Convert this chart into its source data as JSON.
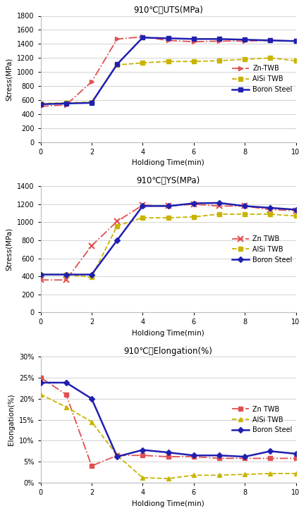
{
  "uts": {
    "title": "910℃，UTS(MPa)",
    "xlabel": "Holdiong Time(min)",
    "ylabel": "Stress(MPa)",
    "ylim": [
      0,
      1800
    ],
    "yticks": [
      0,
      200,
      400,
      600,
      800,
      1000,
      1200,
      1400,
      1600,
      1800
    ],
    "xlim": [
      0,
      10
    ],
    "xticks": [
      0,
      2,
      4,
      6,
      8,
      10
    ],
    "x": [
      0,
      1,
      2,
      3,
      4,
      5,
      6,
      7,
      8,
      9,
      10
    ],
    "zn_twb": [
      510,
      530,
      860,
      1470,
      1500,
      1450,
      1430,
      1440,
      1440,
      1450,
      1440
    ],
    "alsi_twb": [
      550,
      560,
      570,
      1100,
      1130,
      1150,
      1150,
      1160,
      1180,
      1200,
      1160
    ],
    "boron_steel": [
      540,
      550,
      560,
      1110,
      1490,
      1480,
      1470,
      1470,
      1460,
      1450,
      1440
    ],
    "zn_color": "#e05050",
    "alsi_color": "#c8b400",
    "boron_color": "#2020b0",
    "legend_labels": [
      "Zn-TWB",
      "AlSi TWB",
      "Boron Steel"
    ]
  },
  "ys": {
    "title": "910℃，YS(MPa)",
    "xlabel": "Holdiong Time(min)",
    "ylabel": "Stress(MPa)",
    "ylim": [
      0,
      1400
    ],
    "yticks": [
      0,
      200,
      400,
      600,
      800,
      1000,
      1200,
      1400
    ],
    "xlim": [
      0,
      10
    ],
    "xticks": [
      0,
      2,
      4,
      6,
      8,
      10
    ],
    "x": [
      0,
      1,
      2,
      3,
      4,
      5,
      6,
      7,
      8,
      9,
      10
    ],
    "zn_twb": [
      360,
      360,
      740,
      1010,
      1190,
      1180,
      1200,
      1180,
      1180,
      1140,
      1130
    ],
    "alsi_twb": [
      420,
      420,
      390,
      960,
      1050,
      1050,
      1060,
      1090,
      1090,
      1090,
      1070
    ],
    "boron_steel": [
      420,
      420,
      420,
      800,
      1180,
      1180,
      1210,
      1215,
      1180,
      1160,
      1140
    ],
    "zn_color": "#e05050",
    "alsi_color": "#c8b400",
    "boron_color": "#2020b0",
    "legend_labels": [
      "Zn TWB",
      "AlSi TWB",
      "Boron Steel"
    ]
  },
  "elong": {
    "title": "910℃，Elongation(%)",
    "xlabel": "Holdiong Time(min)",
    "ylabel": "Elongation(%)",
    "ylim": [
      0,
      0.3
    ],
    "yticks": [
      0,
      0.05,
      0.1,
      0.15,
      0.2,
      0.25,
      0.3
    ],
    "ytick_labels": [
      "0%",
      "5%",
      "10%",
      "15%",
      "20%",
      "25%",
      "30%"
    ],
    "xlim": [
      0,
      10
    ],
    "xticks": [
      0,
      2,
      4,
      6,
      8,
      10
    ],
    "x": [
      0,
      1,
      2,
      3,
      4,
      5,
      6,
      7,
      8,
      9,
      10
    ],
    "zn_twb": [
      0.25,
      0.21,
      0.04,
      0.065,
      0.065,
      0.062,
      0.062,
      0.058,
      0.058,
      0.058,
      0.058
    ],
    "alsi_twb": [
      0.21,
      0.18,
      0.145,
      0.065,
      0.012,
      0.01,
      0.018,
      0.018,
      0.02,
      0.022,
      0.022
    ],
    "boron_steel": [
      0.238,
      0.238,
      0.2,
      0.062,
      0.078,
      0.072,
      0.065,
      0.065,
      0.062,
      0.075,
      0.069
    ],
    "zn_color": "#e05050",
    "alsi_color": "#c8b400",
    "boron_color": "#2020b0",
    "legend_labels": [
      "Zn TWB",
      "AlSi TWB",
      "Boron Steel"
    ]
  }
}
